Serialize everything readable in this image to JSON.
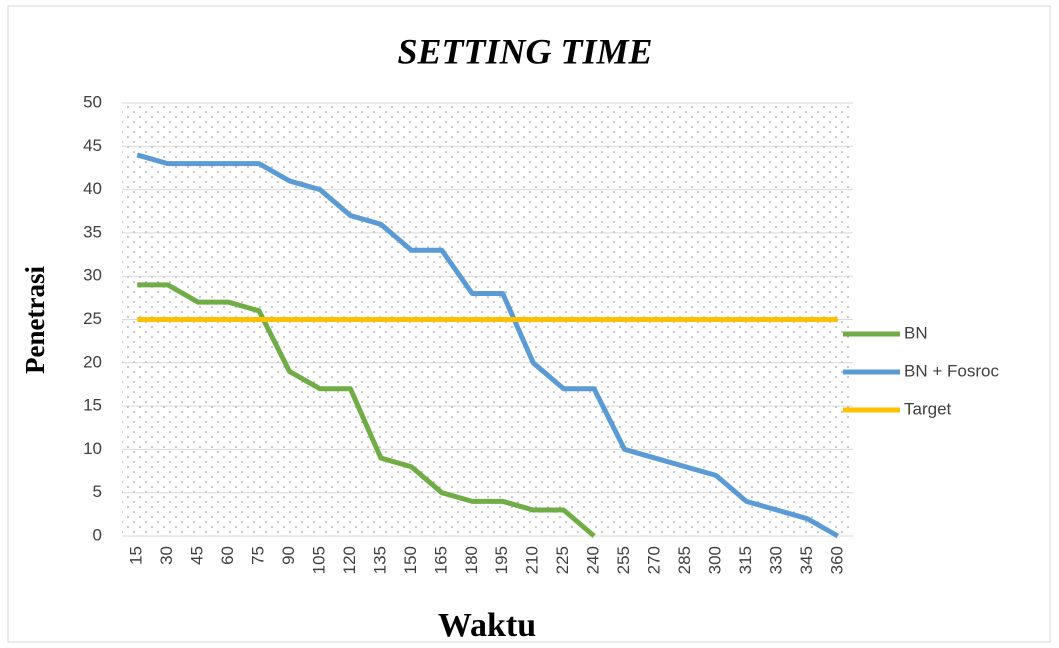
{
  "chart_data": {
    "type": "line",
    "title": "SETTING TIME",
    "x_label": "Waktu",
    "y_label": "Penetrasi",
    "categories": [
      15,
      30,
      45,
      60,
      75,
      90,
      105,
      120,
      135,
      150,
      165,
      180,
      195,
      210,
      225,
      240,
      255,
      270,
      285,
      300,
      315,
      330,
      345,
      360
    ],
    "series": [
      {
        "name": "BN",
        "color": "#70ad47",
        "values": [
          29,
          29,
          27,
          27,
          26,
          19,
          17,
          17,
          9,
          8,
          5,
          4,
          4,
          3,
          3,
          0,
          null,
          null,
          null,
          null,
          null,
          null,
          null,
          null
        ]
      },
      {
        "name": "BN + Fosroc",
        "color": "#5b9bd5",
        "values": [
          44,
          43,
          43,
          43,
          43,
          41,
          40,
          37,
          36,
          33,
          33,
          28,
          28,
          20,
          17,
          17,
          10,
          9,
          8,
          7,
          4,
          3,
          2,
          0
        ]
      },
      {
        "name": "Target",
        "color": "#ffc000",
        "values": [
          25,
          25,
          25,
          25,
          25,
          25,
          25,
          25,
          25,
          25,
          25,
          25,
          25,
          25,
          25,
          25,
          25,
          25,
          25,
          25,
          25,
          25,
          25,
          25
        ]
      }
    ],
    "ylim": [
      0,
      50
    ],
    "yticks": [
      0,
      5,
      10,
      15,
      20,
      25,
      30,
      35,
      40,
      45,
      50
    ],
    "grid": true,
    "legend": "right"
  }
}
